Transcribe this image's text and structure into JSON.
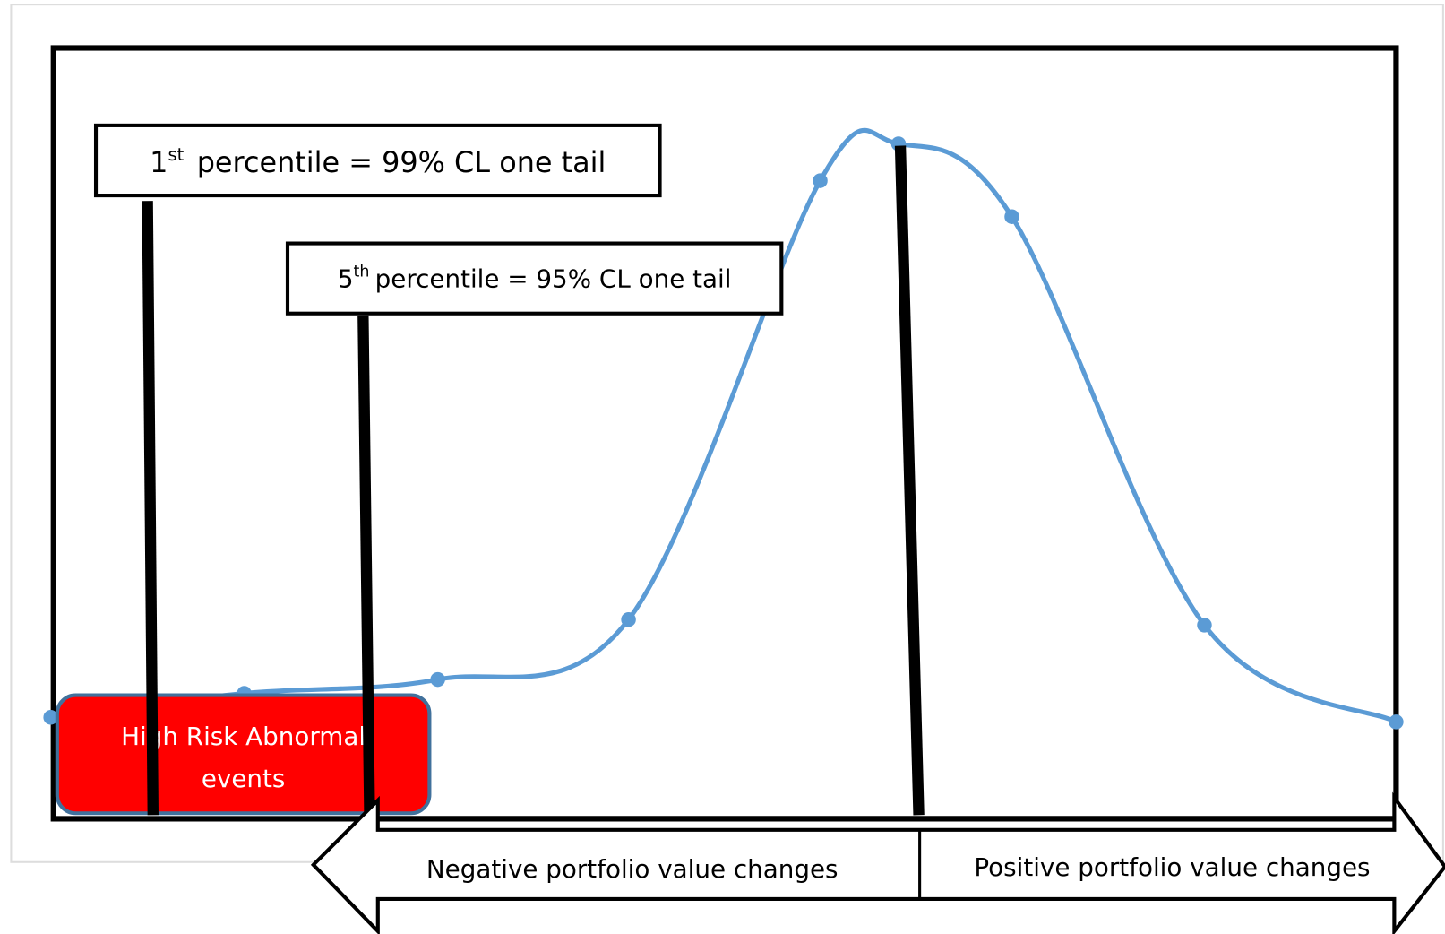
{
  "labels": {
    "first": {
      "number": "1",
      "suffix": "st",
      "text": "percentile = 99% CL one tail"
    },
    "fifth": {
      "number": "5",
      "suffix": "th",
      "text": "percentile = 95% CL one tail"
    },
    "risk": {
      "line1": "High Risk Abnormal",
      "line2": "events"
    },
    "negative": "Negative portfolio value changes",
    "positive": "Positive portfolio value changes"
  }
}
